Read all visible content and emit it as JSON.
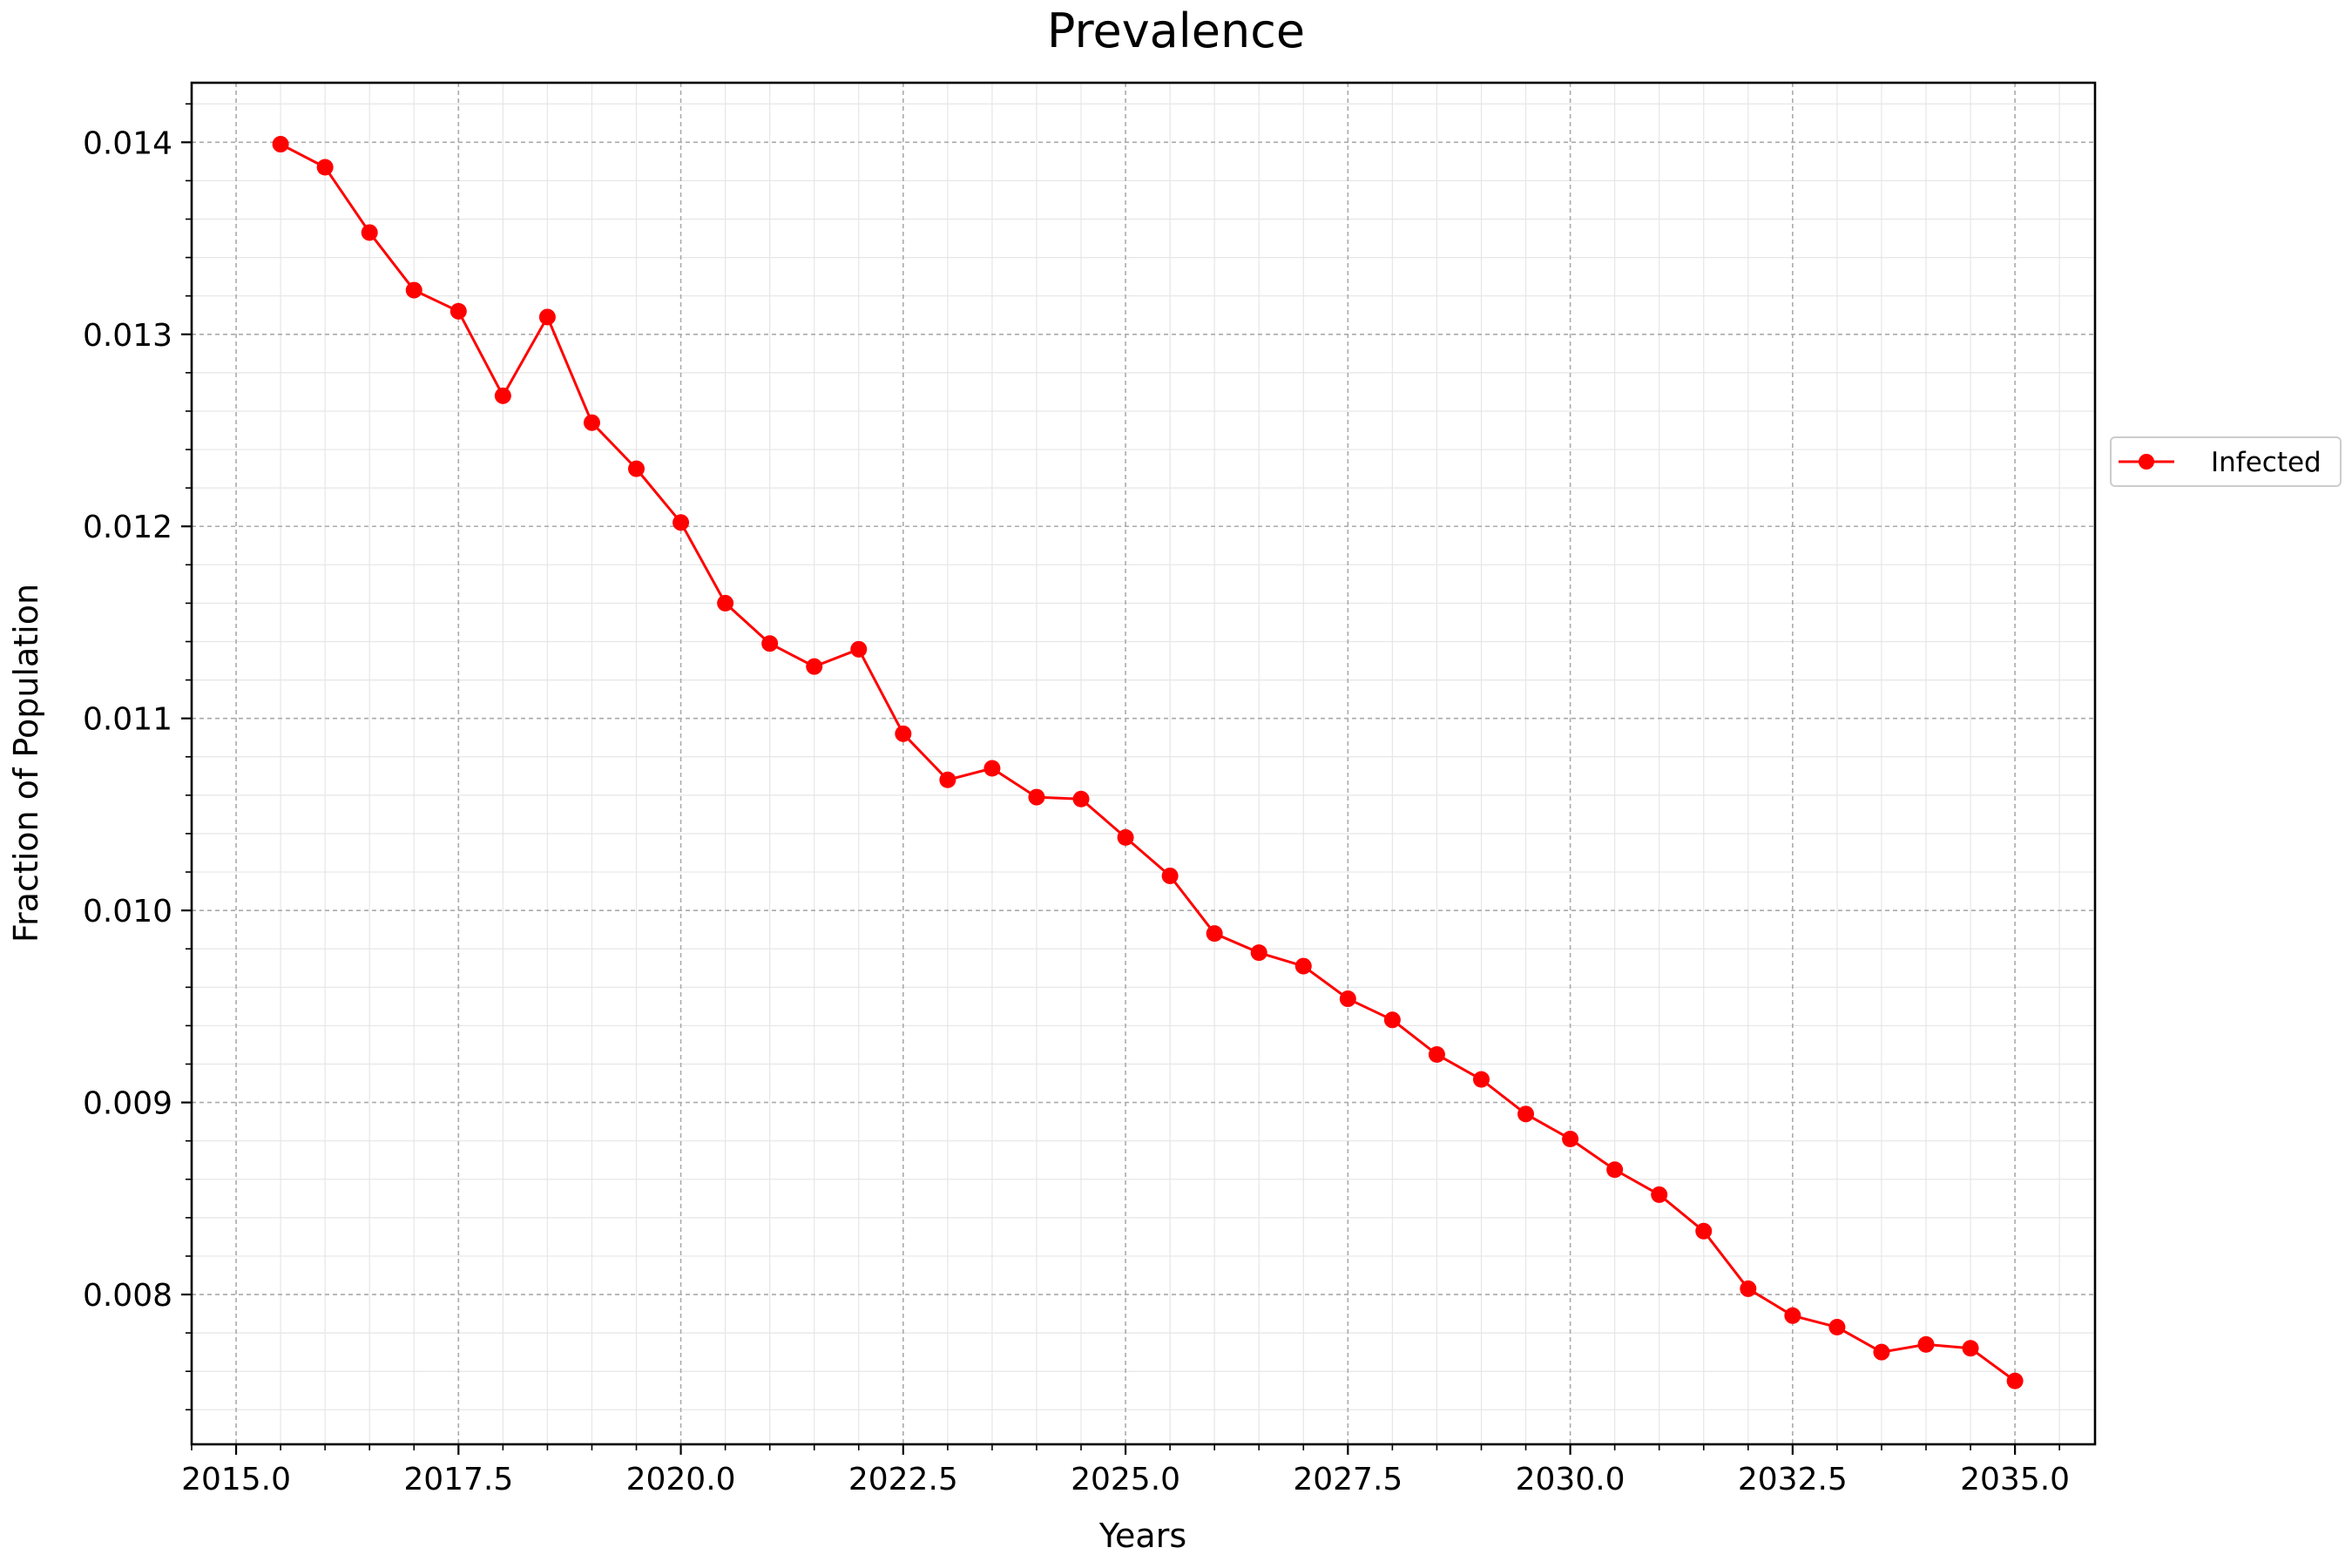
{
  "chart_data": {
    "type": "line",
    "title": "Prevalence",
    "xlabel": "Years",
    "ylabel": "Fraction of Population",
    "xlim": [
      2014.5,
      2035.9
    ],
    "ylim": [
      0.00722,
      0.01431
    ],
    "x_ticks": [
      2015.0,
      2017.5,
      2020.0,
      2022.5,
      2025.0,
      2027.5,
      2030.0,
      2032.5,
      2035.0
    ],
    "x_tick_labels": [
      "2015.0",
      "2017.5",
      "2020.0",
      "2022.5",
      "2025.0",
      "2027.5",
      "2030.0",
      "2032.5",
      "2035.0"
    ],
    "y_ticks": [
      0.008,
      0.009,
      0.01,
      0.011,
      0.012,
      0.013,
      0.014
    ],
    "y_tick_labels": [
      "0.008",
      "0.009",
      "0.010",
      "0.011",
      "0.012",
      "0.013",
      "0.014"
    ],
    "grid": true,
    "minor_grid": true,
    "legend_position": "right, outside plot area",
    "series": [
      {
        "name": "Infected",
        "color": "#ff0000",
        "marker": "circle",
        "x": [
          2015.5,
          2016.0,
          2016.5,
          2017.0,
          2017.5,
          2018.0,
          2018.5,
          2019.0,
          2019.5,
          2020.0,
          2020.5,
          2021.0,
          2021.5,
          2022.0,
          2022.5,
          2023.0,
          2023.5,
          2024.0,
          2024.5,
          2025.0,
          2025.5,
          2026.0,
          2026.5,
          2027.0,
          2027.5,
          2028.0,
          2028.5,
          2029.0,
          2029.5,
          2030.0,
          2030.5,
          2031.0,
          2031.5,
          2032.0,
          2032.5,
          2033.0,
          2033.5,
          2034.0,
          2034.5,
          2035.0
        ],
        "y": [
          0.01399,
          0.01387,
          0.01353,
          0.01323,
          0.01312,
          0.01268,
          0.01309,
          0.01254,
          0.0123,
          0.01202,
          0.0116,
          0.01139,
          0.01127,
          0.01136,
          0.01092,
          0.01068,
          0.01074,
          0.01059,
          0.01058,
          0.01038,
          0.01018,
          0.00988,
          0.00978,
          0.00971,
          0.00954,
          0.00943,
          0.00925,
          0.00912,
          0.00894,
          0.00881,
          0.00865,
          0.00852,
          0.00833,
          0.00803,
          0.00789,
          0.00783,
          0.0077,
          0.00774,
          0.00772,
          0.00755
        ]
      }
    ]
  }
}
